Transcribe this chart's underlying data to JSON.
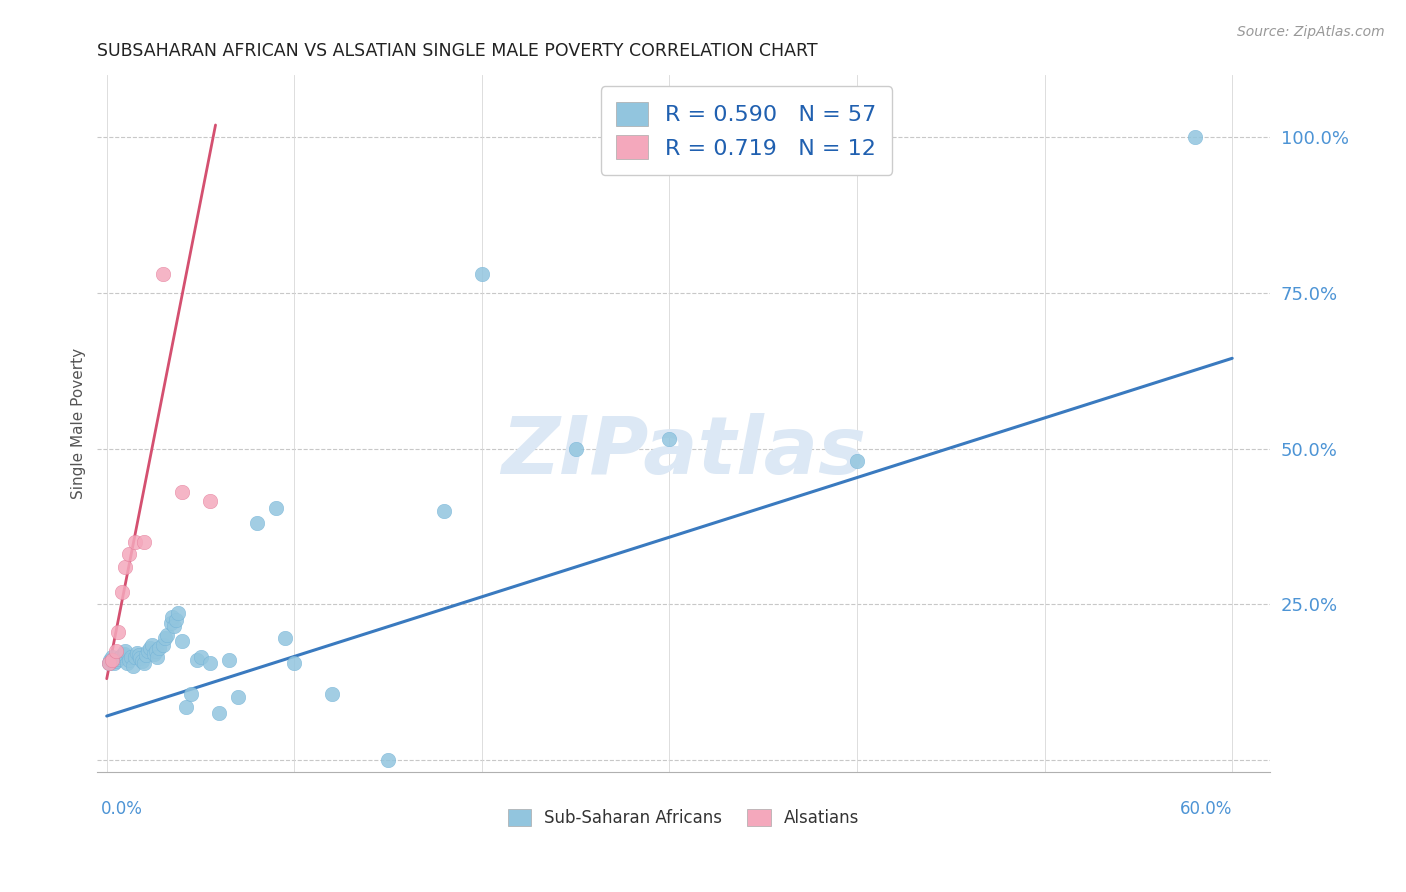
{
  "title": "SUBSAHARAN AFRICAN VS ALSATIAN SINGLE MALE POVERTY CORRELATION CHART",
  "source": "Source: ZipAtlas.com",
  "ylabel": "Single Male Poverty",
  "xlim": [
    -0.005,
    0.62
  ],
  "ylim": [
    -0.02,
    1.1
  ],
  "ytick_values": [
    0.0,
    0.25,
    0.5,
    0.75,
    1.0
  ],
  "ytick_labels": [
    "",
    "25.0%",
    "50.0%",
    "75.0%",
    "100.0%"
  ],
  "blue_color": "#92c5de",
  "blue_edge": "#6baed6",
  "pink_color": "#f4a8bc",
  "pink_edge": "#e07090",
  "blue_line_color": "#3a7abf",
  "pink_line_color": "#d45070",
  "watermark_text": "ZIPatlas",
  "watermark_color": "#dce8f5",
  "sub_saharan_x": [
    0.001,
    0.002,
    0.003,
    0.004,
    0.005,
    0.006,
    0.007,
    0.008,
    0.009,
    0.01,
    0.011,
    0.012,
    0.013,
    0.014,
    0.015,
    0.016,
    0.017,
    0.018,
    0.019,
    0.02,
    0.021,
    0.022,
    0.023,
    0.024,
    0.025,
    0.026,
    0.027,
    0.028,
    0.03,
    0.031,
    0.032,
    0.034,
    0.035,
    0.036,
    0.037,
    0.038,
    0.04,
    0.042,
    0.045,
    0.048,
    0.05,
    0.055,
    0.06,
    0.065,
    0.07,
    0.08,
    0.09,
    0.095,
    0.1,
    0.12,
    0.15,
    0.18,
    0.2,
    0.25,
    0.3,
    0.4,
    0.58
  ],
  "sub_saharan_y": [
    0.155,
    0.16,
    0.165,
    0.155,
    0.158,
    0.162,
    0.165,
    0.168,
    0.17,
    0.175,
    0.155,
    0.16,
    0.165,
    0.15,
    0.165,
    0.172,
    0.168,
    0.163,
    0.158,
    0.155,
    0.168,
    0.175,
    0.18,
    0.185,
    0.17,
    0.175,
    0.165,
    0.18,
    0.185,
    0.195,
    0.2,
    0.22,
    0.23,
    0.215,
    0.225,
    0.235,
    0.19,
    0.085,
    0.105,
    0.16,
    0.165,
    0.155,
    0.075,
    0.16,
    0.1,
    0.38,
    0.405,
    0.195,
    0.155,
    0.105,
    0.0,
    0.4,
    0.78,
    0.5,
    0.515,
    0.48,
    1.0
  ],
  "alsatian_x": [
    0.001,
    0.003,
    0.005,
    0.006,
    0.008,
    0.01,
    0.012,
    0.015,
    0.02,
    0.03,
    0.04,
    0.055
  ],
  "alsatian_y": [
    0.155,
    0.16,
    0.175,
    0.205,
    0.27,
    0.31,
    0.33,
    0.35,
    0.35,
    0.78,
    0.43,
    0.415
  ],
  "blue_line_x": [
    0.0,
    0.6
  ],
  "blue_line_y": [
    0.07,
    0.645
  ],
  "pink_line_x": [
    0.0,
    0.058
  ],
  "pink_line_y": [
    0.13,
    1.02
  ],
  "xtick_positions": [
    0.0,
    0.1,
    0.2,
    0.3,
    0.4,
    0.5,
    0.6
  ]
}
